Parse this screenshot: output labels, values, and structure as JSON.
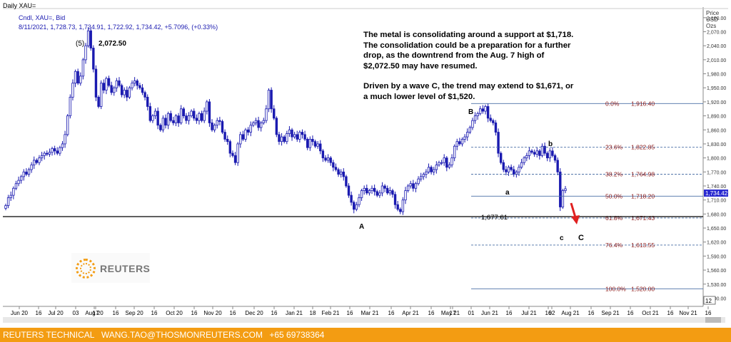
{
  "header": {
    "title": "Daily XAU=",
    "instrument": "Cndl, XAU=, Bid",
    "ohlc": "8/11/2021, 1,728.73, 1,734.91, 1,722.92, 1,734.42, +5.7096, (+0.33%)",
    "price_label_1": "Price",
    "price_label_2": "USD",
    "price_label_3": "Ozs"
  },
  "annotation": {
    "para1": "The metal is consolidating around a support at $1,718. The consolidation could be a preparation for a further drop, as the downtrend from the Aug. 7 high of $2,072.50 may have resumed.",
    "para2": "Driven by a wave C, the trend may extend to $1,671, or a much lower level of $1,520."
  },
  "logo": {
    "text": "REUTERS"
  },
  "footer": {
    "left": "REUTERS TECHNICAL",
    "email": "WANG.TAO@THOSMONREUTERS.COM",
    "phone": "+65 69738364"
  },
  "scrollbar": {
    "right_label": "12"
  },
  "chart_data": {
    "type": "candlestick",
    "current_price": "1,734.42",
    "support_price": "1,677.61",
    "y_ticks": [
      1500,
      1530,
      1560,
      1590,
      1620,
      1650,
      1680,
      1710,
      1740,
      1770,
      1800,
      1830,
      1860,
      1890,
      1920,
      1950,
      1980,
      2010,
      2040,
      2070,
      2100
    ],
    "y_tick_labels": [
      "1,500.00",
      "1,530.00",
      "1,560.00",
      "1,590.00",
      "1,620.00",
      "1,650.00",
      "1,680.00",
      "1,710.00",
      "1,740.00",
      "1,770.00",
      "1,800.00",
      "1,830.00",
      "1,860.00",
      "1,890.00",
      "1,920.00",
      "1,950.00",
      "1,980.00",
      "2,010.00",
      "2,040.00",
      "2,070.00",
      "2,100.00"
    ],
    "ylim": [
      1490,
      2115
    ],
    "x_labels": [
      {
        "text": "Jun 20",
        "x": 27
      },
      {
        "text": "16",
        "x": 54
      },
      {
        "text": "Jul 20",
        "x": 78
      },
      {
        "text": "03",
        "x": 106
      },
      {
        "text": "17",
        "x": 134
      },
      {
        "text": "Aug 20",
        "x": 132
      },
      {
        "text": "16",
        "x": 162
      },
      {
        "text": "Sep 20",
        "x": 188
      },
      {
        "text": "16",
        "x": 216
      },
      {
        "text": "Oct 20",
        "x": 244
      },
      {
        "text": "16",
        "x": 272
      },
      {
        "text": "Nov 20",
        "x": 298
      },
      {
        "text": "16",
        "x": 326
      },
      {
        "text": "Dec 20",
        "x": 356
      },
      {
        "text": "16",
        "x": 384
      },
      {
        "text": "Jan 21",
        "x": 412
      },
      {
        "text": "18",
        "x": 438
      },
      {
        "text": "Feb 21",
        "x": 463
      },
      {
        "text": "16",
        "x": 490
      },
      {
        "text": "Mar 21",
        "x": 518
      },
      {
        "text": "16",
        "x": 548
      },
      {
        "text": "Apr 21",
        "x": 575
      },
      {
        "text": "16",
        "x": 604
      },
      {
        "text": "May 21",
        "x": 631
      },
      {
        "text": "17",
        "x": 634
      },
      {
        "text": "01",
        "x": 660
      },
      {
        "text": "Jun 21",
        "x": 686
      },
      {
        "text": "16",
        "x": 713
      },
      {
        "text": "Jul 21",
        "x": 741
      },
      {
        "text": "16",
        "x": 768
      },
      {
        "text": "02",
        "x": 773
      },
      {
        "text": "Aug 21",
        "x": 799
      },
      {
        "text": "16",
        "x": 828
      },
      {
        "text": "Sep 21",
        "x": 855
      },
      {
        "text": "16",
        "x": 883
      },
      {
        "text": "Oct 21",
        "x": 911
      },
      {
        "text": "16",
        "x": 939
      },
      {
        "text": "Nov 21",
        "x": 964
      },
      {
        "text": "16",
        "x": 992
      }
    ],
    "fib_levels": [
      {
        "label": "0.0%",
        "value": 1916.4,
        "text": "1,916.40"
      },
      {
        "label": "23.6%",
        "value": 1822.85,
        "text": "1,822.85"
      },
      {
        "label": "38.2%",
        "value": 1764.98,
        "text": "1,764.98"
      },
      {
        "label": "50.0%",
        "value": 1718.2,
        "text": "1,718.20"
      },
      {
        "label": "61.8%",
        "value": 1671.43,
        "text": "1,671.43"
      },
      {
        "label": "76.4%",
        "value": 1613.55,
        "text": "1,613.55"
      },
      {
        "label": "100.0%",
        "value": 1520.0,
        "text": "1,520.00"
      }
    ],
    "wave_labels": [
      {
        "text": "(5)",
        "price": 2090
      },
      {
        "text": "2,072.50",
        "price": 2090
      },
      {
        "text": "A",
        "price": 1650
      },
      {
        "text": "B",
        "price": 1935
      },
      {
        "text": "a",
        "price": 1730
      },
      {
        "text": "b",
        "price": 1850
      },
      {
        "text": "c",
        "price": 1640
      },
      {
        "text": "C",
        "price": 1640
      }
    ],
    "closes": [
      1698,
      1715,
      1720,
      1735,
      1745,
      1752,
      1760,
      1770,
      1765,
      1775,
      1785,
      1795,
      1790,
      1800,
      1805,
      1810,
      1808,
      1812,
      1820,
      1815,
      1810,
      1822,
      1830,
      1850,
      1890,
      1930,
      1960,
      1985,
      1960,
      1975,
      2010,
      2040,
      2072,
      2035,
      1990,
      1930,
      1910,
      1960,
      1945,
      1970,
      1955,
      1940,
      1950,
      1965,
      1955,
      1935,
      1945,
      1930,
      1950,
      1960,
      1965,
      1955,
      1950,
      1940,
      1930,
      1910,
      1880,
      1890,
      1900,
      1870,
      1860,
      1885,
      1870,
      1895,
      1880,
      1875,
      1890,
      1875,
      1905,
      1890,
      1880,
      1890,
      1900,
      1885,
      1880,
      1895,
      1880,
      1900,
      1920,
      1875,
      1860,
      1870,
      1880,
      1878,
      1855,
      1840,
      1835,
      1810,
      1805,
      1790,
      1830,
      1850,
      1840,
      1860,
      1855,
      1870,
      1875,
      1880,
      1865,
      1875,
      1880,
      1905,
      1945,
      1905,
      1885,
      1850,
      1835,
      1845,
      1835,
      1852,
      1860,
      1845,
      1850,
      1840,
      1855,
      1850,
      1840,
      1822,
      1840,
      1835,
      1825,
      1830,
      1815,
      1800,
      1795,
      1800,
      1790,
      1780,
      1775,
      1765,
      1770,
      1760,
      1740,
      1720,
      1705,
      1690,
      1700,
      1715,
      1730,
      1735,
      1725,
      1730,
      1735,
      1728,
      1720,
      1725,
      1740,
      1735,
      1725,
      1730,
      1722,
      1700,
      1690,
      1685,
      1710,
      1730,
      1740,
      1745,
      1735,
      1745,
      1755,
      1760,
      1765,
      1770,
      1780,
      1770,
      1775,
      1785,
      1790,
      1790,
      1800,
      1780,
      1785,
      1800,
      1825,
      1835,
      1830,
      1840,
      1845,
      1855,
      1865,
      1880,
      1890,
      1895,
      1905,
      1900,
      1910,
      1885,
      1880,
      1875,
      1855,
      1810,
      1790,
      1775,
      1770,
      1780,
      1775,
      1765,
      1770,
      1780,
      1790,
      1800,
      1805,
      1815,
      1812,
      1808,
      1815,
      1805,
      1825,
      1810,
      1800,
      1815,
      1805,
      1795,
      1770,
      1695,
      1730,
      1734
    ]
  }
}
